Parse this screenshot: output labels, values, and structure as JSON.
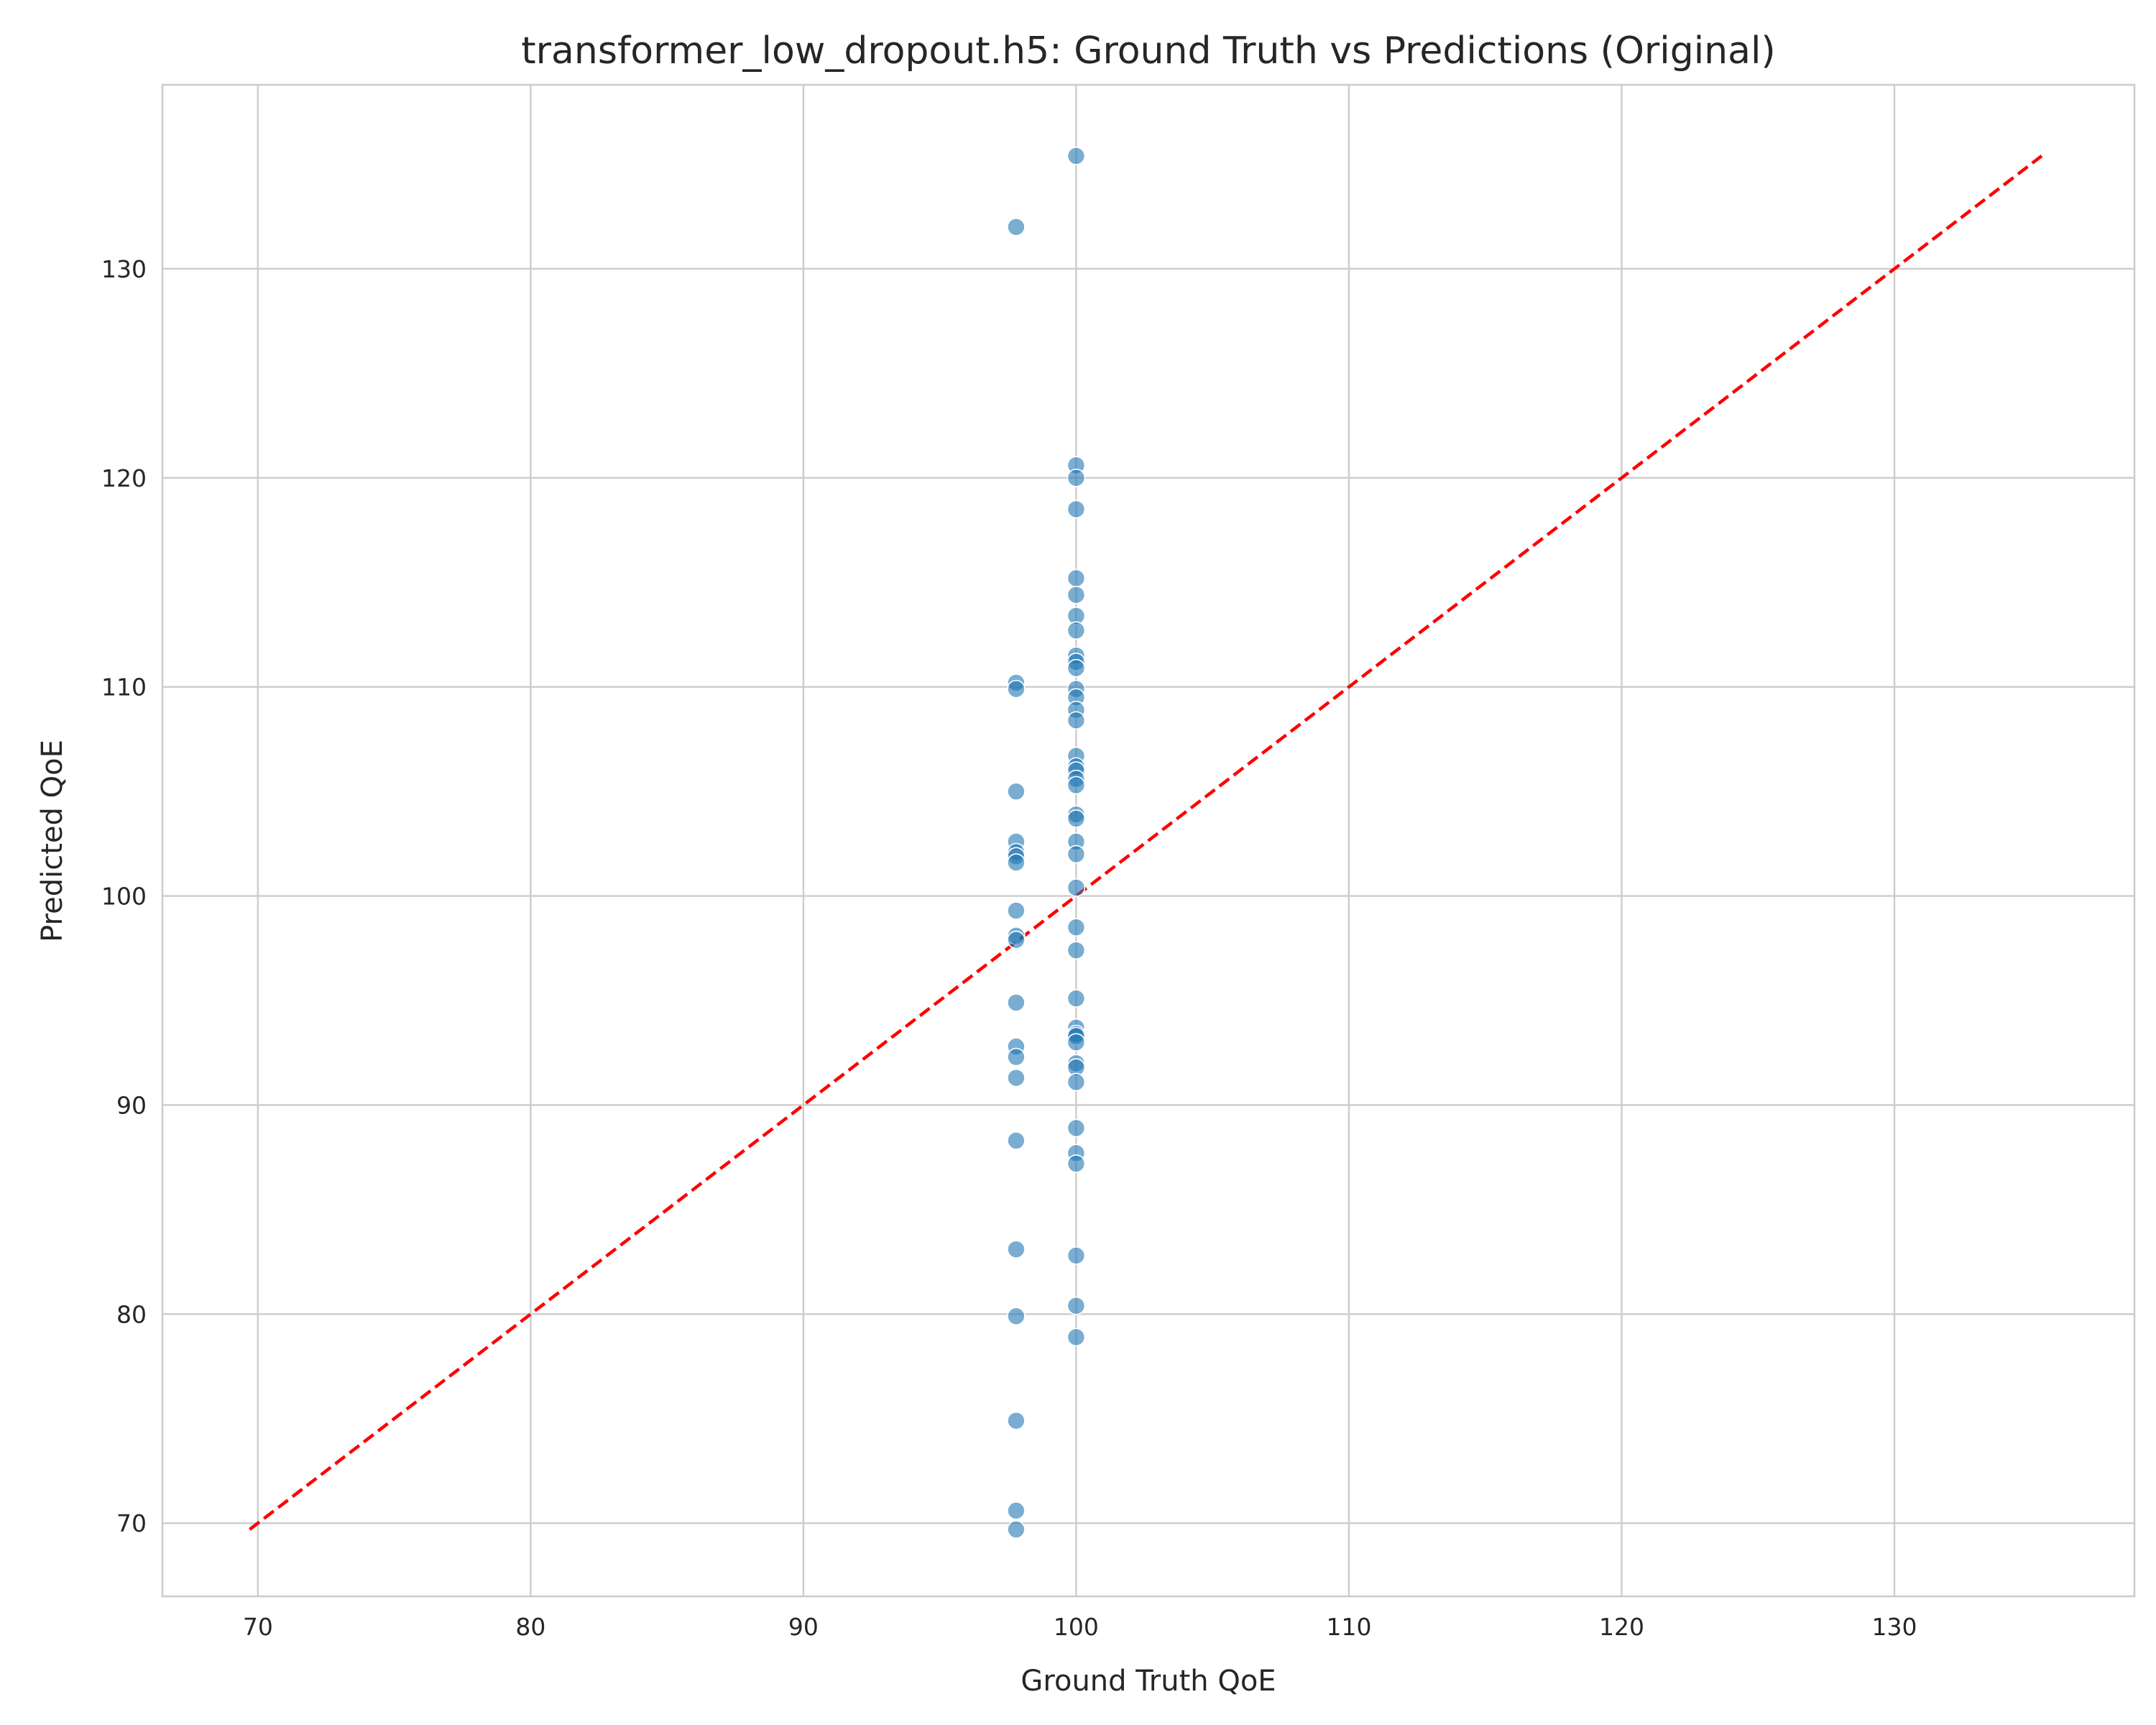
{
  "chart_data": {
    "type": "scatter",
    "title": "transformer_low_dropout.h5: Ground Truth vs Predictions (Original)",
    "xlabel": "Ground Truth QoE",
    "ylabel": "Predicted QoE",
    "xlim": [
      66.5,
      138.8
    ],
    "ylim": [
      66.5,
      138.8
    ],
    "xticks": [
      70,
      80,
      90,
      100,
      110,
      120,
      130
    ],
    "yticks": [
      70,
      80,
      90,
      100,
      110,
      120,
      130
    ],
    "grid": true,
    "reference_line": {
      "from": [
        69.7,
        69.7
      ],
      "to": [
        135.4,
        135.4
      ],
      "color": "#ff0000",
      "style": "dashed"
    },
    "point_color": "#1f77b4",
    "series": [
      {
        "points": [
          [
            100.0,
            135.4
          ],
          [
            97.8,
            132.0
          ],
          [
            100.0,
            120.6
          ],
          [
            100.0,
            120.0
          ],
          [
            100.0,
            118.5
          ],
          [
            100.0,
            115.2
          ],
          [
            100.0,
            114.4
          ],
          [
            100.0,
            113.4
          ],
          [
            100.0,
            112.7
          ],
          [
            100.0,
            111.5
          ],
          [
            100.0,
            111.2
          ],
          [
            100.0,
            110.9
          ],
          [
            97.8,
            110.2
          ],
          [
            97.8,
            109.9
          ],
          [
            100.0,
            109.9
          ],
          [
            100.0,
            109.5
          ],
          [
            100.0,
            108.9
          ],
          [
            100.0,
            108.4
          ],
          [
            100.0,
            106.7
          ],
          [
            100.0,
            106.2
          ],
          [
            100.0,
            106.0
          ],
          [
            100.0,
            105.6
          ],
          [
            100.0,
            105.3
          ],
          [
            97.8,
            105.0
          ],
          [
            100.0,
            103.9
          ],
          [
            100.0,
            103.7
          ],
          [
            97.8,
            102.6
          ],
          [
            100.0,
            102.6
          ],
          [
            97.8,
            102.1
          ],
          [
            97.8,
            101.9
          ],
          [
            100.0,
            102.0
          ],
          [
            97.8,
            101.6
          ],
          [
            100.0,
            100.4
          ],
          [
            97.8,
            99.3
          ],
          [
            100.0,
            98.5
          ],
          [
            97.8,
            98.1
          ],
          [
            97.8,
            97.9
          ],
          [
            100.0,
            97.4
          ],
          [
            100.0,
            95.1
          ],
          [
            97.8,
            94.9
          ],
          [
            100.0,
            93.7
          ],
          [
            100.0,
            93.4
          ],
          [
            100.0,
            93.3
          ],
          [
            100.0,
            93.0
          ],
          [
            97.8,
            92.8
          ],
          [
            97.8,
            92.3
          ],
          [
            100.0,
            92.0
          ],
          [
            100.0,
            91.8
          ],
          [
            97.8,
            91.3
          ],
          [
            100.0,
            91.1
          ],
          [
            100.0,
            88.9
          ],
          [
            97.8,
            88.3
          ],
          [
            100.0,
            87.7
          ],
          [
            100.0,
            87.2
          ],
          [
            97.8,
            83.1
          ],
          [
            100.0,
            82.8
          ],
          [
            100.0,
            80.4
          ],
          [
            97.8,
            79.9
          ],
          [
            100.0,
            78.9
          ],
          [
            97.8,
            74.9
          ],
          [
            97.8,
            70.6
          ],
          [
            97.8,
            69.7
          ]
        ]
      }
    ]
  }
}
